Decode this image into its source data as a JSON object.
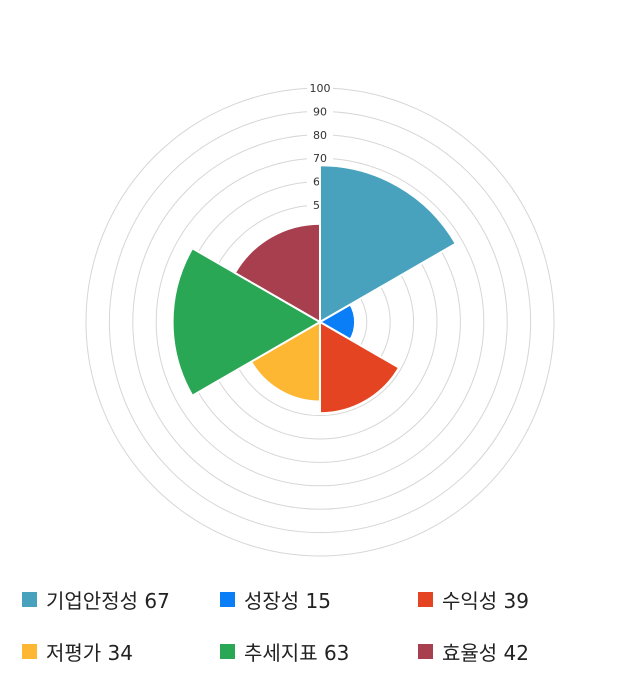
{
  "chart_data": {
    "type": "polarArea",
    "categories": [
      "기업안정성",
      "성장성",
      "수익성",
      "저평가",
      "추세지표",
      "효율성"
    ],
    "values": [
      67,
      15,
      39,
      34,
      63,
      42
    ],
    "colors": [
      "#48a2bd",
      "#0a7ef6",
      "#e44422",
      "#fdb732",
      "#2aa755",
      "#a73f4e"
    ],
    "rlim": [
      0,
      100
    ],
    "ticks": [
      "10",
      "20",
      "30",
      "40",
      "50",
      "60",
      "70",
      "80",
      "90",
      "100"
    ],
    "grid": true,
    "legend_placement": "bottom",
    "legend_labels": [
      "기업안정성 67",
      "성장성 15",
      "수익성 39",
      "저평가 34",
      "추세지표 63",
      "효율성 42"
    ]
  }
}
